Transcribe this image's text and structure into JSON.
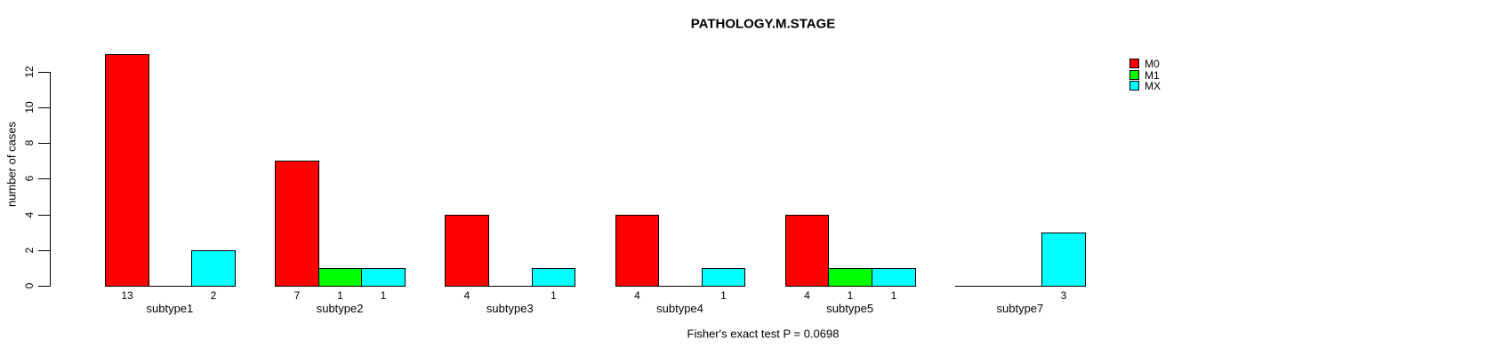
{
  "title": "PATHOLOGY.M.STAGE",
  "annotation": "Fisher's exact test P = 0.0698",
  "y_axis_label": "number of cases",
  "chart_data": {
    "type": "bar",
    "title": "PATHOLOGY.M.STAGE",
    "categories": [
      "subtype1",
      "subtype2",
      "subtype3",
      "subtype4",
      "subtype5",
      "subtype7"
    ],
    "series": [
      {
        "name": "M0",
        "color": "#FF0000",
        "values": [
          13,
          7,
          4,
          4,
          4,
          0
        ]
      },
      {
        "name": "M1",
        "color": "#00FF00",
        "values": [
          0,
          1,
          0,
          0,
          1,
          0
        ]
      },
      {
        "name": "MX",
        "color": "#00FFFF",
        "values": [
          2,
          1,
          1,
          1,
          1,
          3
        ]
      }
    ],
    "bar_value_labels": {
      "subtype1": [
        "13",
        "",
        "2"
      ],
      "subtype2": [
        "7",
        "1",
        "1"
      ],
      "subtype3": [
        "4",
        "",
        "1"
      ],
      "subtype4": [
        "4",
        "",
        "1"
      ],
      "subtype5": [
        "4",
        "1",
        "1"
      ],
      "subtype7": [
        "",
        "",
        "3"
      ]
    },
    "xlabel": "",
    "ylabel": "number of cases",
    "ylim": [
      0,
      13
    ],
    "yticks": [
      0,
      2,
      4,
      6,
      8,
      10,
      12
    ],
    "legend": [
      "M0",
      "M1",
      "MX"
    ],
    "legend_position": "topright",
    "grid": false,
    "annotation": "Fisher's exact test P = 0.0698",
    "background_color": "#FFFFFF",
    "axis_color": "#000000"
  }
}
